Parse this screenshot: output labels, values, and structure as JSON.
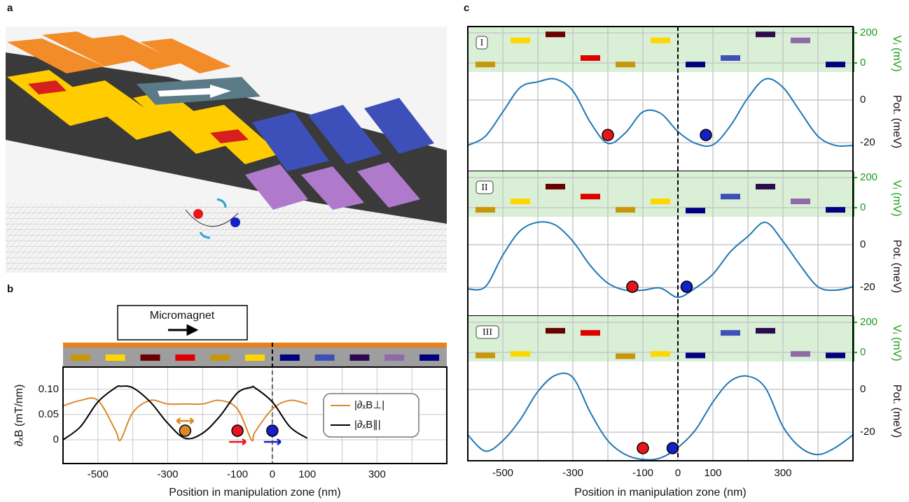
{
  "chart_data": [
    {
      "type": "line",
      "panel_label": "b",
      "annotation": "Micromagnet",
      "xlabel": "Position in manipulation zone (nm)",
      "ylabel": "∂ₓB (mT/nm)",
      "xlim": [
        -600,
        500
      ],
      "xticks": [
        -500,
        {
          "value": -400,
          "label": null
        },
        -300,
        {
          "value": -200,
          "label": null
        },
        -100,
        0,
        100,
        {
          "value": 200,
          "label": null
        },
        300,
        {
          "value": 400,
          "label": null
        }
      ],
      "ylim": [
        -0.047,
        0.144
      ],
      "yticks": [
        0,
        0.05,
        {
          "value": 0.1,
          "label": "0.10"
        }
      ],
      "x": [
        -600,
        -550,
        -500,
        -450,
        -435,
        -400,
        -350,
        -300,
        -250,
        -200,
        -150,
        -100,
        -60,
        -50,
        0,
        50,
        100
      ],
      "series": [
        {
          "name": "|∂ₓB⊥|",
          "color": "#d98a2b",
          "values": [
            0.067,
            0.078,
            0.078,
            0.019,
            0,
            0.054,
            0.078,
            0.071,
            0.071,
            0.071,
            0.078,
            0.061,
            0,
            0.015,
            0.061,
            0.078,
            0.071
          ]
        },
        {
          "name": "|∂ₓB∥|",
          "color": "#000000",
          "values": [
            0,
            0.026,
            0.075,
            0.103,
            0.106,
            0.103,
            0.075,
            0.033,
            0.003,
            0.013,
            0.047,
            0.093,
            0.104,
            0.103,
            0.075,
            0.026,
            0.003
          ]
        }
      ],
      "markers": {
        "x": [
          -250,
          -100,
          0
        ],
        "y": [
          0.018,
          0.018,
          0.018
        ],
        "colors": [
          "#d98a2b",
          "#e8161b",
          "#1520c8"
        ]
      },
      "gate_x": [
        -550,
        -450,
        -350,
        -250,
        -150,
        -50,
        50,
        150,
        250,
        350,
        450
      ],
      "gate_colors": [
        "#c8960a",
        "#ffd700",
        "#6b0000",
        "#e00000",
        "#c8960a",
        "#ffd700",
        "#00007f",
        "#3f51b5",
        "#2d0a4e",
        "#8e6aa8",
        "#00007f"
      ]
    },
    {
      "type": "line",
      "panel_label": "c",
      "xlabel": "Position in manipulation zone (nm)",
      "ylabel": "Pot. (meV)",
      "y2label": "Vᵢ (mV)",
      "xlim": [
        -600,
        500
      ],
      "xticks": [
        -500,
        {
          "value": -400,
          "label": null
        },
        -300,
        {
          "value": -200,
          "label": null
        },
        -100,
        0,
        100,
        {
          "value": 200,
          "label": null
        },
        300,
        {
          "value": 400,
          "label": null
        }
      ],
      "ylim": [
        -33.4,
        13.1
      ],
      "yticks": [
        -20,
        0
      ],
      "y2lim": [
        -60,
        242
      ],
      "y2ticks": [
        0,
        200
      ],
      "color": "#1f77b4",
      "marker_colors": [
        "#e8161b",
        "#1520c8"
      ],
      "x": [
        -600,
        -550,
        -500,
        -450,
        -400,
        -350,
        -300,
        -250,
        -200,
        -150,
        -100,
        -50,
        0,
        50,
        100,
        150,
        200,
        250,
        300,
        350,
        400,
        450,
        500
      ],
      "gate_x": [
        -550,
        -450,
        -350,
        -250,
        -150,
        -50,
        50,
        150,
        250,
        350,
        450
      ],
      "panels": [
        {
          "label": "I",
          "values": [
            -21.3,
            -17,
            -5.6,
            5.9,
            8.5,
            9.8,
            4.3,
            -10.5,
            -20.3,
            -15.4,
            -5.6,
            -6.2,
            -14.8,
            -20.3,
            -21,
            -12.1,
            1,
            9.8,
            5.9,
            -5.6,
            -17,
            -21.3,
            -21.3
          ],
          "gate_values": [
            -10,
            150,
            190,
            33,
            -10,
            150,
            -10,
            33,
            190,
            150,
            -10
          ],
          "markers": {
            "x": [
              -200,
              80
            ],
            "y": [
              -16.4,
              -16.4
            ]
          }
        },
        {
          "label": "II",
          "values": [
            -20.7,
            -19.7,
            -4.9,
            6.6,
            10.5,
            9.2,
            1.6,
            -9.8,
            -18,
            -21.3,
            -21.3,
            -20.3,
            -24.6,
            -20.3,
            -13.8,
            -3.3,
            3.9,
            10.5,
            1.6,
            -9.8,
            -19.7,
            -21.3,
            -19.7
          ],
          "gate_values": [
            -14,
            42,
            140,
            74,
            -14,
            42,
            -19,
            74,
            140,
            42,
            -14
          ],
          "markers": {
            "x": [
              -130,
              25
            ],
            "y": [
              -19.7,
              -19.7
            ]
          }
        },
        {
          "label": "III",
          "values": [
            -21.3,
            -28.9,
            -24,
            -14.1,
            -1,
            6.6,
            5.6,
            -10.8,
            -24,
            -30.5,
            -32.8,
            -32.1,
            -27.2,
            -19,
            -5.9,
            3.9,
            6.2,
            0.7,
            -17.4,
            -27.2,
            -30.5,
            -27.2,
            -21.3
          ],
          "gate_values": [
            -20,
            -10,
            144,
            130,
            -25,
            -10,
            -20,
            130,
            144,
            -10,
            -20
          ],
          "markers": {
            "x": [
              -100,
              -15
            ],
            "y": [
              -27.5,
              -27.5
            ]
          }
        }
      ]
    }
  ],
  "panel_a_label": "a"
}
